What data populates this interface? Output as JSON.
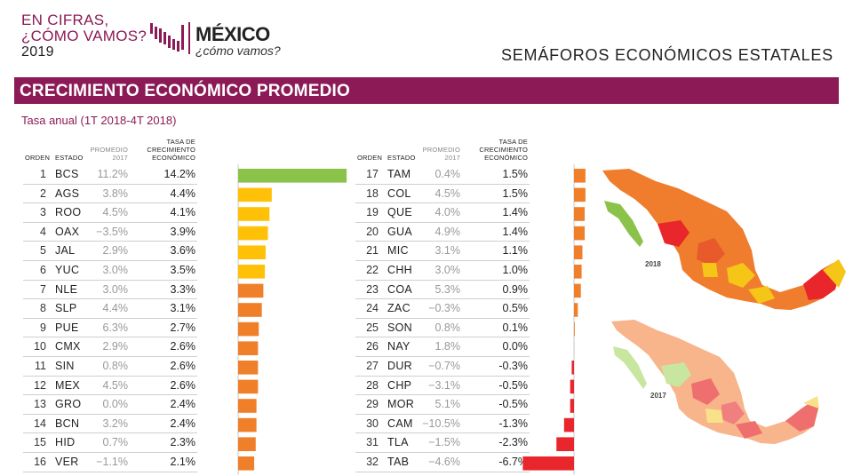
{
  "brand": {
    "line1": "EN CIFRAS,",
    "line2": "¿CÓMO VAMOS?",
    "line3": "2019"
  },
  "logo": {
    "name": "MÉXICO",
    "tagline": "¿cómo vamos?"
  },
  "page_title": "SEMÁFOROS ECONÓMICOS ESTATALES",
  "banner": "CRECIMIENTO ECONÓMICO PROMEDIO",
  "subtitle": "Tasa anual (1T 2018-4T 2018)",
  "headers": {
    "rank": "ORDEN",
    "state": "ESTADO",
    "prom1": "PROMEDIO",
    "prom2": "2017",
    "tasa1": "TASA DE",
    "tasa2": "CRECIMIENTO",
    "tasa3": "ECONÓMICO"
  },
  "maps": {
    "label_top": "2018",
    "label_bottom": "2017"
  },
  "colors": {
    "brand": "#8b1a56",
    "green": "#8bc34a",
    "yellow": "#ffc107",
    "orange": "#f07f2a",
    "red": "#e8262b",
    "axis": "#c8c8c8"
  },
  "chart_data": {
    "type": "bar",
    "orientation": "horizontal",
    "title": "CRECIMIENTO ECONÓMICO PROMEDIO",
    "subtitle": "Tasa anual (1T 2018-4T 2018)",
    "categories": [
      "BCS",
      "AGS",
      "ROO",
      "OAX",
      "JAL",
      "YUC",
      "NLE",
      "SLP",
      "PUE",
      "CMX",
      "SIN",
      "MEX",
      "GRO",
      "BCN",
      "HID",
      "VER",
      "TAM",
      "COL",
      "QUE",
      "GUA",
      "MIC",
      "CHH",
      "COA",
      "ZAC",
      "SON",
      "NAY",
      "DUR",
      "CHP",
      "MOR",
      "CAM",
      "TLA",
      "TAB"
    ],
    "rank": [
      1,
      2,
      3,
      4,
      5,
      6,
      7,
      8,
      9,
      10,
      11,
      12,
      13,
      14,
      15,
      16,
      17,
      18,
      19,
      20,
      21,
      22,
      23,
      24,
      25,
      26,
      27,
      28,
      29,
      30,
      31,
      32
    ],
    "series": [
      {
        "name": "TASA DE CRECIMIENTO ECONÓMICO",
        "values": [
          14.2,
          4.4,
          4.1,
          3.9,
          3.6,
          3.5,
          3.3,
          3.1,
          2.7,
          2.6,
          2.6,
          2.6,
          2.4,
          2.4,
          2.3,
          2.1,
          1.5,
          1.5,
          1.4,
          1.4,
          1.1,
          1.0,
          0.9,
          0.5,
          0.1,
          0.0,
          -0.3,
          -0.5,
          -0.5,
          -1.3,
          -2.3,
          -6.7
        ],
        "labels": [
          "14.2%",
          "4.4%",
          "4.1%",
          "3.9%",
          "3.6%",
          "3.5%",
          "3.3%",
          "3.1%",
          "2.7%",
          "2.6%",
          "2.6%",
          "2.6%",
          "2.4%",
          "2.4%",
          "2.3%",
          "2.1%",
          "1.5%",
          "1.5%",
          "1.4%",
          "1.4%",
          "1.1%",
          "1.0%",
          "0.9%",
          "0.5%",
          "0.1%",
          "0.0%",
          "-0.3%",
          "-0.5%",
          "-0.5%",
          "-1.3%",
          "-2.3%",
          "-6.7%"
        ],
        "colors": [
          "green",
          "yellow",
          "yellow",
          "yellow",
          "yellow",
          "yellow",
          "orange",
          "orange",
          "orange",
          "orange",
          "orange",
          "orange",
          "orange",
          "orange",
          "orange",
          "orange",
          "orange",
          "orange",
          "orange",
          "orange",
          "orange",
          "orange",
          "orange",
          "orange",
          "orange",
          "orange",
          "red",
          "red",
          "red",
          "red",
          "red",
          "red"
        ]
      },
      {
        "name": "PROMEDIO 2017",
        "values": [
          11.2,
          3.8,
          4.5,
          -3.5,
          2.9,
          3.0,
          3.0,
          4.4,
          6.3,
          2.9,
          0.8,
          4.5,
          0.0,
          3.2,
          0.7,
          -1.1,
          0.4,
          4.5,
          4.0,
          4.9,
          3.1,
          3.0,
          5.3,
          -0.3,
          0.8,
          1.8,
          -0.7,
          -3.1,
          5.1,
          -10.5,
          -1.5,
          -4.6
        ],
        "labels": [
          "11.2%",
          "3.8%",
          "4.5%",
          "−3.5%",
          "2.9%",
          "3.0%",
          "3.0%",
          "4.4%",
          "6.3%",
          "2.9%",
          "0.8%",
          "4.5%",
          "0.0%",
          "3.2%",
          "0.7%",
          "−1.1%",
          "0.4%",
          "4.5%",
          "4.0%",
          "4.9%",
          "3.1%",
          "3.0%",
          "5.3%",
          "−0.3%",
          "0.8%",
          "1.8%",
          "−0.7%",
          "−3.1%",
          "5.1%",
          "−10.5%",
          "−1.5%",
          "−4.6%"
        ]
      }
    ]
  }
}
